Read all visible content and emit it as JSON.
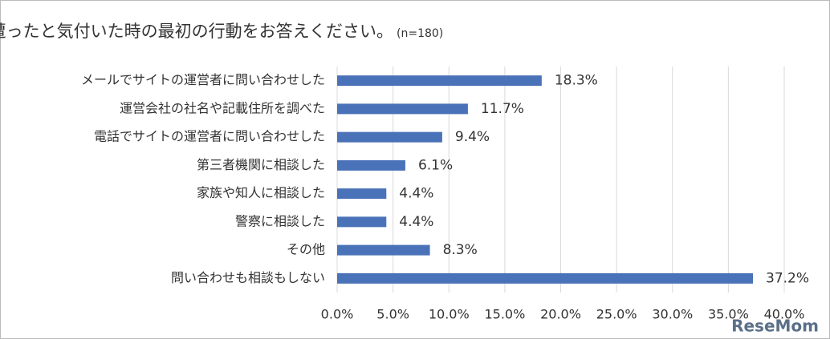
{
  "chart_data": {
    "type": "hbar",
    "title": "被害に遭ったと気付いた時の最初の行動をお答えください。",
    "subtitle": "(n=180)",
    "categories": [
      "メールでサイトの運営者に問い合わせした",
      "運営会社の社名や記載住所を調べた",
      "電話でサイトの運営者に問い合わせした",
      "第三者機関に相談した",
      "家族や知人に相談した",
      "警察に相談した",
      "その他",
      "問い合わせも相談もしない"
    ],
    "values": [
      18.3,
      11.7,
      9.4,
      6.1,
      4.4,
      4.4,
      8.3,
      37.2
    ],
    "value_labels": [
      "18.3%",
      "11.7%",
      "9.4%",
      "6.1%",
      "4.4%",
      "4.4%",
      "8.3%",
      "37.2%"
    ],
    "color": "#4a72b8",
    "xlim": [
      0,
      40
    ],
    "xticks": [
      {
        "value": 0,
        "label": "0.0%"
      },
      {
        "value": 5,
        "label": "5.0%"
      },
      {
        "value": 10,
        "label": "10.0%"
      },
      {
        "value": 15,
        "label": "15.0%"
      },
      {
        "value": 20,
        "label": "20.0%"
      },
      {
        "value": 25,
        "label": "25.0%"
      },
      {
        "value": 30,
        "label": "30.0%"
      },
      {
        "value": 35,
        "label": "35.0%"
      },
      {
        "value": 40,
        "label": "40.0%"
      }
    ],
    "grid": true,
    "watermark": "ReseMom"
  }
}
